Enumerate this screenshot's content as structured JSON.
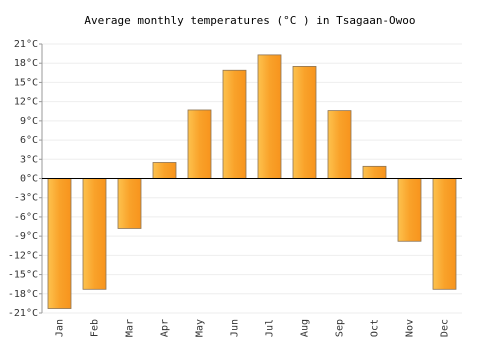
{
  "chart_data": {
    "type": "bar",
    "title": "Average monthly temperatures (°C ) in Tsagaan-Owoo",
    "categories": [
      "Jan",
      "Feb",
      "Mar",
      "Apr",
      "May",
      "Jun",
      "Jul",
      "Aug",
      "Sep",
      "Oct",
      "Nov",
      "Dec"
    ],
    "values": [
      -20.3,
      -17.3,
      -7.8,
      2.5,
      10.7,
      16.9,
      19.3,
      17.5,
      10.6,
      1.9,
      -9.8,
      -17.3
    ],
    "color": "#f9a22a",
    "ylim": [
      -21,
      21
    ],
    "yticks": [
      {
        "value": -21,
        "label": "-21°C"
      },
      {
        "value": -18,
        "label": "-18°C"
      },
      {
        "value": -15,
        "label": "-15°C"
      },
      {
        "value": -12,
        "label": "-12°C"
      },
      {
        "value": -9,
        "label": "-9°C"
      },
      {
        "value": -6,
        "label": "-6°C"
      },
      {
        "value": -3,
        "label": "-3°C"
      },
      {
        "value": 0,
        "label": "0°C"
      },
      {
        "value": 3,
        "label": "3°C"
      },
      {
        "value": 6,
        "label": "6°C"
      },
      {
        "value": 9,
        "label": "9°C"
      },
      {
        "value": 12,
        "label": "12°C"
      },
      {
        "value": 15,
        "label": "15°C"
      },
      {
        "value": 18,
        "label": "18°C"
      },
      {
        "value": 21,
        "label": "21°C"
      }
    ],
    "grid": true
  }
}
